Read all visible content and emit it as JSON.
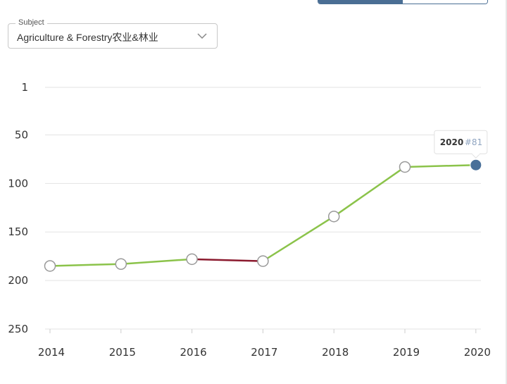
{
  "header": {
    "view_toggle": {
      "active_color": "#4a6e94"
    }
  },
  "subject_select": {
    "label": "Subject",
    "value": "Agriculture & Forestry农业&林业",
    "icon": "chevron-down-icon"
  },
  "chart_data": {
    "type": "line",
    "title": "",
    "xlabel": "",
    "ylabel": "",
    "y_inverted": true,
    "ylim": [
      1,
      250
    ],
    "yticks": [
      1,
      50,
      100,
      150,
      200,
      250
    ],
    "grid": true,
    "categories": [
      "2014",
      "2015",
      "2016",
      "2017",
      "2018",
      "2019",
      "2020"
    ],
    "series": [
      {
        "values": [
          185,
          183,
          178,
          180,
          134,
          83,
          81
        ]
      }
    ],
    "segment_colors": [
      "#8bc34a",
      "#8bc34a",
      "#8b1a2e",
      "#8bc34a",
      "#8bc34a",
      "#8bc34a"
    ],
    "highlight": {
      "index": 6,
      "year": "2020",
      "rank_label": "#81",
      "color": "#4a7099"
    }
  }
}
